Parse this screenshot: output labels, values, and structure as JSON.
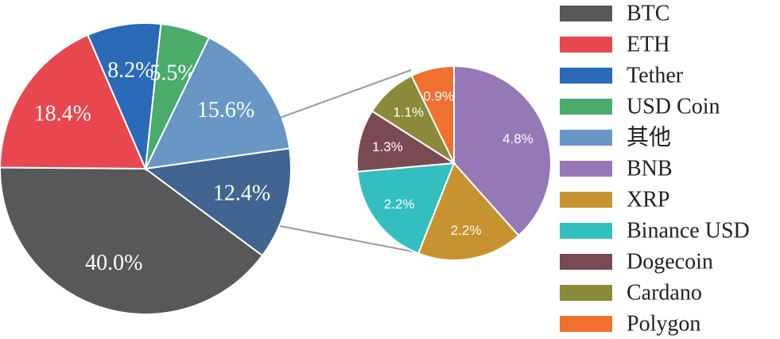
{
  "chart_data": {
    "type": "pie",
    "main_pie": {
      "slices": [
        {
          "name": "BTC",
          "value": 40.0,
          "label": "40.0%",
          "color": "#58585a"
        },
        {
          "name": "ETH",
          "value": 18.4,
          "label": "18.4%",
          "color": "#e8474f"
        },
        {
          "name": "Tether",
          "value": 8.2,
          "label": "8.2%",
          "color": "#2a6ab6"
        },
        {
          "name": "USD Coin",
          "value": 5.5,
          "label": "5.5%",
          "color": "#4bab6b"
        },
        {
          "name": "其他",
          "value": 15.6,
          "label": "15.6%",
          "color": "#6897c6"
        },
        {
          "name": "其他",
          "value": 12.4,
          "label": "12.4%",
          "color": "#3f6590"
        }
      ]
    },
    "sub_pie": {
      "slices": [
        {
          "name": "BNB",
          "value": 4.8,
          "label": "4.8%",
          "color": "#9479b6"
        },
        {
          "name": "XRP",
          "value": 2.2,
          "label": "2.2%",
          "color": "#c79331"
        },
        {
          "name": "Binance USD",
          "value": 2.2,
          "label": "2.2%",
          "color": "#33bfbf"
        },
        {
          "name": "Dogecoin",
          "value": 1.3,
          "label": "1.3%",
          "color": "#7a4a53"
        },
        {
          "name": "Cardano",
          "value": 1.1,
          "label": "1.1%",
          "color": "#8a8a3a"
        },
        {
          "name": "Polygon",
          "value": 0.9,
          "label": "0.9%",
          "color": "#f07030"
        }
      ]
    },
    "legend": [
      {
        "name": "BTC",
        "color": "#58585a"
      },
      {
        "name": "ETH",
        "color": "#e8474f"
      },
      {
        "name": "Tether",
        "color": "#2a6ab6"
      },
      {
        "name": "USD Coin",
        "color": "#4bab6b"
      },
      {
        "name": "其他",
        "color": "#6897c6"
      },
      {
        "name": "BNB",
        "color": "#9479b6"
      },
      {
        "name": "XRP",
        "color": "#c79331"
      },
      {
        "name": "Binance USD",
        "color": "#33bfbf"
      },
      {
        "name": "Dogecoin",
        "color": "#7a4a53"
      },
      {
        "name": "Cardano",
        "color": "#8a8a3a"
      },
      {
        "name": "Polygon",
        "color": "#f07030"
      }
    ],
    "legend_position": "right"
  }
}
